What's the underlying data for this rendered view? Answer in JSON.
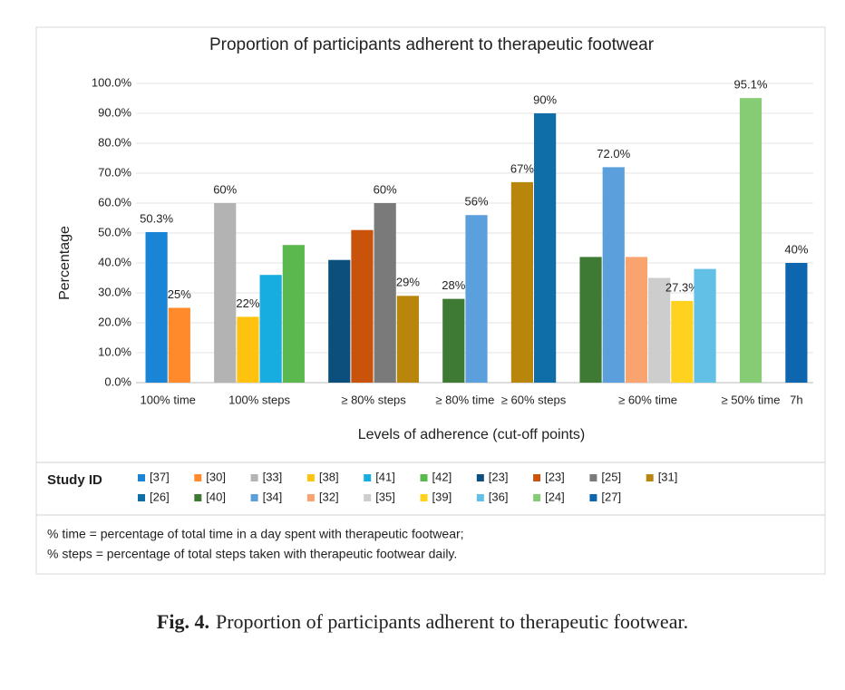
{
  "chart_data": {
    "type": "bar",
    "title": "Proportion of participants adherent to therapeutic footwear",
    "y_label": "Percentage",
    "x_label": "Levels of adherence (cut-off points)",
    "legend_title": "Study ID",
    "categories": [
      "100% time",
      "100% steps",
      "≥ 80% steps",
      "≥ 80% time",
      "≥ 60% steps",
      "≥ 60% time",
      "≥ 50% time",
      "7h"
    ],
    "ylim": [
      0,
      100
    ],
    "yticks": [
      {
        "value": 0,
        "label": "0.0%"
      },
      {
        "value": 10,
        "label": "10.0%"
      },
      {
        "value": 20,
        "label": "20.0%"
      },
      {
        "value": 30,
        "label": "30.0%"
      },
      {
        "value": 40,
        "label": "40.0%"
      },
      {
        "value": 50,
        "label": "50.0%"
      },
      {
        "value": 60,
        "label": "60.0%"
      },
      {
        "value": 70,
        "label": "70.0%"
      },
      {
        "value": 80,
        "label": "80.0%"
      },
      {
        "value": 90,
        "label": "90.0%"
      },
      {
        "value": 100,
        "label": "100.0%"
      }
    ],
    "series": [
      {
        "name": "[37]",
        "color": "#1a85d6",
        "values": [
          50.3,
          null,
          null,
          null,
          null,
          null,
          null,
          null
        ],
        "value_labels": [
          "50.3%",
          null,
          null,
          null,
          null,
          null,
          null,
          null
        ]
      },
      {
        "name": "[30]",
        "color": "#ff8a2b",
        "values": [
          25,
          null,
          null,
          null,
          null,
          null,
          null,
          null
        ],
        "value_labels": [
          "25%",
          null,
          null,
          null,
          null,
          null,
          null,
          null
        ]
      },
      {
        "name": "[33]",
        "color": "#b3b3b3",
        "values": [
          null,
          60,
          null,
          null,
          null,
          null,
          null,
          null
        ],
        "value_labels": [
          null,
          "60%",
          null,
          null,
          null,
          null,
          null,
          null
        ]
      },
      {
        "name": "[38]",
        "color": "#ffc20e",
        "values": [
          null,
          22,
          null,
          null,
          null,
          null,
          null,
          null
        ],
        "value_labels": [
          null,
          "22%",
          null,
          null,
          null,
          null,
          null,
          null
        ]
      },
      {
        "name": "[41]",
        "color": "#17ade0",
        "values": [
          null,
          36,
          null,
          null,
          null,
          null,
          null,
          null
        ]
      },
      {
        "name": "[42]",
        "color": "#5bb84e",
        "values": [
          null,
          46,
          null,
          null,
          null,
          null,
          null,
          null
        ]
      },
      {
        "name": "[23]",
        "color": "#0d4f7c",
        "values": [
          null,
          null,
          41,
          null,
          null,
          null,
          null,
          null
        ]
      },
      {
        "name": "[23]",
        "color": "#c9530a",
        "values": [
          null,
          null,
          51,
          null,
          null,
          null,
          null,
          null
        ]
      },
      {
        "name": "[25]",
        "color": "#7a7a7a",
        "values": [
          null,
          null,
          60,
          null,
          null,
          null,
          null,
          null
        ],
        "value_labels": [
          null,
          null,
          "60%",
          null,
          null,
          null,
          null,
          null
        ]
      },
      {
        "name": "[31]",
        "color": "#b8860b",
        "values": [
          null,
          null,
          29,
          null,
          67,
          null,
          null,
          null
        ],
        "value_labels": [
          null,
          null,
          "29%",
          null,
          "67%",
          null,
          null,
          null
        ]
      },
      {
        "name": "[26]",
        "color": "#0f6ea8",
        "values": [
          null,
          null,
          null,
          null,
          90,
          null,
          null,
          null
        ],
        "value_labels": [
          null,
          null,
          null,
          null,
          "90%",
          null,
          null,
          null
        ]
      },
      {
        "name": "[40]",
        "color": "#3f7a34",
        "values": [
          null,
          null,
          null,
          28,
          null,
          42,
          null,
          null
        ],
        "value_labels": [
          null,
          null,
          null,
          "28%",
          null,
          null,
          null,
          null
        ]
      },
      {
        "name": "[34]",
        "color": "#5b9fdc",
        "values": [
          null,
          null,
          null,
          56,
          null,
          72,
          null,
          null
        ],
        "value_labels": [
          null,
          null,
          null,
          "56%",
          null,
          "72.0%",
          null,
          null
        ]
      },
      {
        "name": "[32]",
        "color": "#f9a46e",
        "values": [
          null,
          null,
          null,
          null,
          null,
          42,
          null,
          null
        ]
      },
      {
        "name": "[35]",
        "color": "#cdcdcd",
        "values": [
          null,
          null,
          null,
          null,
          null,
          35,
          null,
          null
        ]
      },
      {
        "name": "[39]",
        "color": "#ffd21f",
        "values": [
          null,
          null,
          null,
          null,
          null,
          27.3,
          null,
          null
        ],
        "value_labels": [
          null,
          null,
          null,
          null,
          null,
          "27.3%",
          null,
          null
        ]
      },
      {
        "name": "[36]",
        "color": "#62bfe6",
        "values": [
          null,
          null,
          null,
          null,
          null,
          38,
          null,
          null
        ]
      },
      {
        "name": "[24]",
        "color": "#85cc74",
        "values": [
          null,
          null,
          null,
          null,
          null,
          null,
          95.1,
          null
        ],
        "value_labels": [
          null,
          null,
          null,
          null,
          null,
          null,
          "95.1%",
          null
        ]
      },
      {
        "name": "[27]",
        "color": "#0e67ae",
        "values": [
          null,
          null,
          null,
          null,
          null,
          null,
          null,
          40
        ],
        "value_labels": [
          null,
          null,
          null,
          null,
          null,
          null,
          null,
          "40%"
        ]
      }
    ]
  },
  "footnotes": [
    "% time = percentage of total time in a day spent with therapeutic footwear;",
    "% steps = percentage of total steps taken with therapeutic footwear daily."
  ],
  "caption": {
    "label": "Fig. 4.",
    "text": "Proportion of participants adherent to therapeutic footwear."
  }
}
